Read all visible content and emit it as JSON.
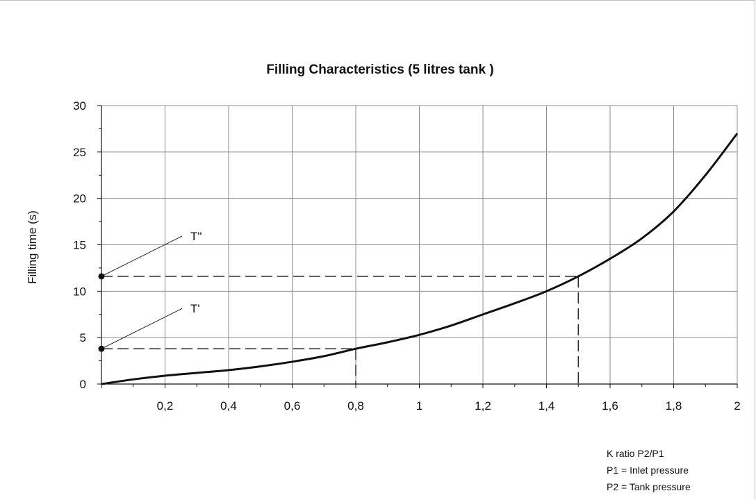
{
  "chart_data": {
    "type": "line",
    "title": "Filling Characteristics (5 litres tank )",
    "ylabel": "Filling time (s)",
    "xlim": [
      0,
      2
    ],
    "ylim": [
      0,
      30
    ],
    "x_ticks": [
      0.2,
      0.4,
      0.6,
      0.8,
      1,
      1.2,
      1.4,
      1.6,
      1.8,
      2
    ],
    "x_tick_labels": [
      "0,2",
      "0,4",
      "0,6",
      "0,8",
      "1",
      "1,2",
      "1,4",
      "1,6",
      "1,8",
      "2"
    ],
    "y_ticks": [
      0,
      5,
      10,
      15,
      20,
      25,
      30
    ],
    "y_tick_labels": [
      "0",
      "5",
      "10",
      "15",
      "20",
      "25",
      "30"
    ],
    "grid": true,
    "series": [
      {
        "x": [
          0,
          0.1,
          0.2,
          0.3,
          0.4,
          0.5,
          0.6,
          0.7,
          0.8,
          0.9,
          1.0,
          1.1,
          1.2,
          1.3,
          1.4,
          1.5,
          1.6,
          1.7,
          1.8,
          1.9,
          2.0
        ],
        "y": [
          0,
          0.5,
          0.9,
          1.2,
          1.5,
          1.9,
          2.4,
          3.0,
          3.8,
          4.5,
          5.3,
          6.3,
          7.5,
          8.7,
          10.0,
          11.6,
          13.5,
          15.7,
          18.6,
          22.5,
          27.0
        ]
      }
    ],
    "annotations": [
      {
        "label": "T'",
        "x": 0.8,
        "y": 3.8
      },
      {
        "label": "T\"",
        "x": 1.5,
        "y": 11.6
      }
    ],
    "notes": [
      "K ratio P2/P1",
      "P1 = Inlet pressure",
      "P2 = Tank pressure"
    ]
  }
}
